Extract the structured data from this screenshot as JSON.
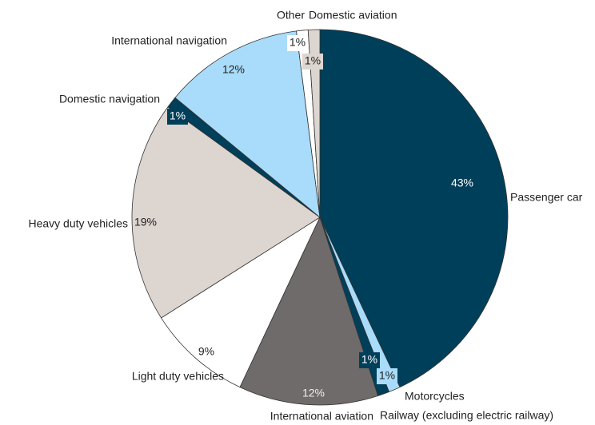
{
  "chart_data": {
    "type": "pie",
    "categories": [
      "Passenger car",
      "Motorcycles",
      "Railway (excluding electric railway)",
      "International aviation",
      "Light duty vehicles",
      "Heavy duty vehicles",
      "Domestic navigation",
      "International navigation",
      "Other",
      "Domestic aviation"
    ],
    "values": [
      43,
      1,
      1,
      12,
      9,
      19,
      1,
      12,
      1,
      1
    ],
    "value_labels": [
      "43%",
      "1%",
      "1%",
      "12%",
      "9%",
      "19%",
      "1%",
      "12%",
      "1%",
      "1%"
    ],
    "colors": [
      "#003f5a",
      "#a9dcfa",
      "#003f5a",
      "#6f6b6a",
      "#ffffff",
      "#ddd5cf",
      "#003f5a",
      "#a9dcfa",
      "#ffffff",
      "#ddd5cf"
    ]
  }
}
